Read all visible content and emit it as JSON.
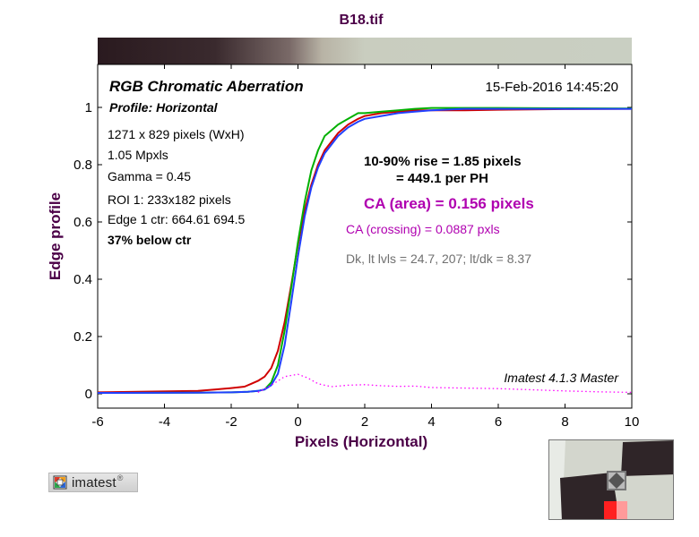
{
  "figure": {
    "title": "B18.tif",
    "header": "RGB Chromatic Aberration",
    "profile": "Profile: Horizontal",
    "date": "15-Feb-2016 14:45:20",
    "info": [
      "1271 x 829 pixels (WxH)",
      "1.05 Mpxls",
      "Gamma = 0.45",
      "ROI 1: 233x182 pixels",
      "Edge 1 ctr: 664.61  694.5",
      "37% below ctr"
    ],
    "rise_line1": "10-90% rise = 1.85 pixels",
    "rise_line2": "= 449.1 per PH",
    "ca_area": "CA (area) = 0.156 pixels",
    "ca_crossing": "CA (crossing) = 0.0887 pxls",
    "levels": "Dk, lt lvls = 24.7, 207;  lt/dk = 8.37",
    "software": "Imatest 4.1.3  Master",
    "logo_text": "imatest",
    "logo_mark": "®"
  },
  "colors": {
    "title": "#4b0047",
    "red": "#d00000",
    "green": "#00b000",
    "blue": "#2040ff",
    "ca_magenta": "#b000b0",
    "levels_gray": "#707070",
    "ca_curve": "#ff00ff"
  },
  "chart_data": {
    "type": "line",
    "title": "B18.tif",
    "xlabel": "Pixels (Horizontal)",
    "ylabel": "Edge profile",
    "xlim": [
      -6,
      10
    ],
    "ylim": [
      -0.05,
      1.15
    ],
    "xticks": [
      -6,
      -4,
      -2,
      0,
      2,
      4,
      6,
      8,
      10
    ],
    "yticks": [
      0,
      0.2,
      0.4,
      0.6,
      0.8,
      1
    ],
    "ytick_labels": [
      "0",
      "0.2",
      "0.4",
      "0.6",
      "0.8",
      "1"
    ],
    "legend": "none",
    "series": [
      {
        "color": "red",
        "x": [
          -6,
          -3,
          -2.5,
          -2,
          -1.6,
          -1.4,
          -1.2,
          -1,
          -0.8,
          -0.6,
          -0.4,
          -0.2,
          0,
          0.2,
          0.4,
          0.6,
          0.8,
          1,
          1.2,
          1.5,
          1.8,
          2,
          2.5,
          3,
          3.5,
          4,
          5,
          6,
          8,
          10
        ],
        "y": [
          0.005,
          0.01,
          0.015,
          0.02,
          0.025,
          0.035,
          0.045,
          0.06,
          0.09,
          0.15,
          0.25,
          0.38,
          0.52,
          0.64,
          0.73,
          0.8,
          0.85,
          0.88,
          0.91,
          0.94,
          0.96,
          0.97,
          0.98,
          0.985,
          0.99,
          0.99,
          0.99,
          0.992,
          0.994,
          0.995
        ]
      },
      {
        "color": "green",
        "x": [
          -6,
          -3,
          -2,
          -1.5,
          -1.2,
          -1,
          -0.8,
          -0.6,
          -0.4,
          -0.2,
          0,
          0.2,
          0.4,
          0.6,
          0.8,
          1,
          1.2,
          1.5,
          1.8,
          2,
          2.5,
          3,
          3.5,
          4,
          5,
          6,
          8,
          10
        ],
        "y": [
          0.003,
          0.004,
          0.005,
          0.007,
          0.01,
          0.015,
          0.04,
          0.1,
          0.22,
          0.37,
          0.53,
          0.67,
          0.78,
          0.85,
          0.9,
          0.92,
          0.94,
          0.96,
          0.98,
          0.98,
          0.985,
          0.99,
          0.995,
          0.998,
          0.998,
          0.998,
          0.997,
          0.996
        ]
      },
      {
        "color": "blue",
        "x": [
          -6,
          -3,
          -2,
          -1.5,
          -1.2,
          -1,
          -0.8,
          -0.6,
          -0.4,
          -0.2,
          0,
          0.2,
          0.4,
          0.6,
          0.8,
          1,
          1.2,
          1.5,
          1.8,
          2,
          2.5,
          3,
          3.5,
          4,
          5,
          6,
          8,
          10
        ],
        "y": [
          0.003,
          0.004,
          0.005,
          0.007,
          0.01,
          0.015,
          0.03,
          0.07,
          0.17,
          0.32,
          0.48,
          0.62,
          0.72,
          0.79,
          0.84,
          0.87,
          0.9,
          0.93,
          0.95,
          0.96,
          0.97,
          0.98,
          0.985,
          0.99,
          0.995,
          0.995,
          0.995,
          0.995
        ]
      },
      {
        "color": "magenta",
        "style": "dotted",
        "x": [
          -1.2,
          -0.8,
          -0.4,
          0,
          0.3,
          0.6,
          1,
          1.5,
          2,
          2.5,
          3,
          3.5,
          4,
          5,
          6,
          7,
          8,
          9,
          10
        ],
        "y": [
          0.005,
          0.03,
          0.06,
          0.068,
          0.055,
          0.035,
          0.025,
          0.03,
          0.032,
          0.028,
          0.026,
          0.027,
          0.022,
          0.02,
          0.018,
          0.014,
          0.01,
          0.007,
          0.005
        ]
      }
    ]
  }
}
